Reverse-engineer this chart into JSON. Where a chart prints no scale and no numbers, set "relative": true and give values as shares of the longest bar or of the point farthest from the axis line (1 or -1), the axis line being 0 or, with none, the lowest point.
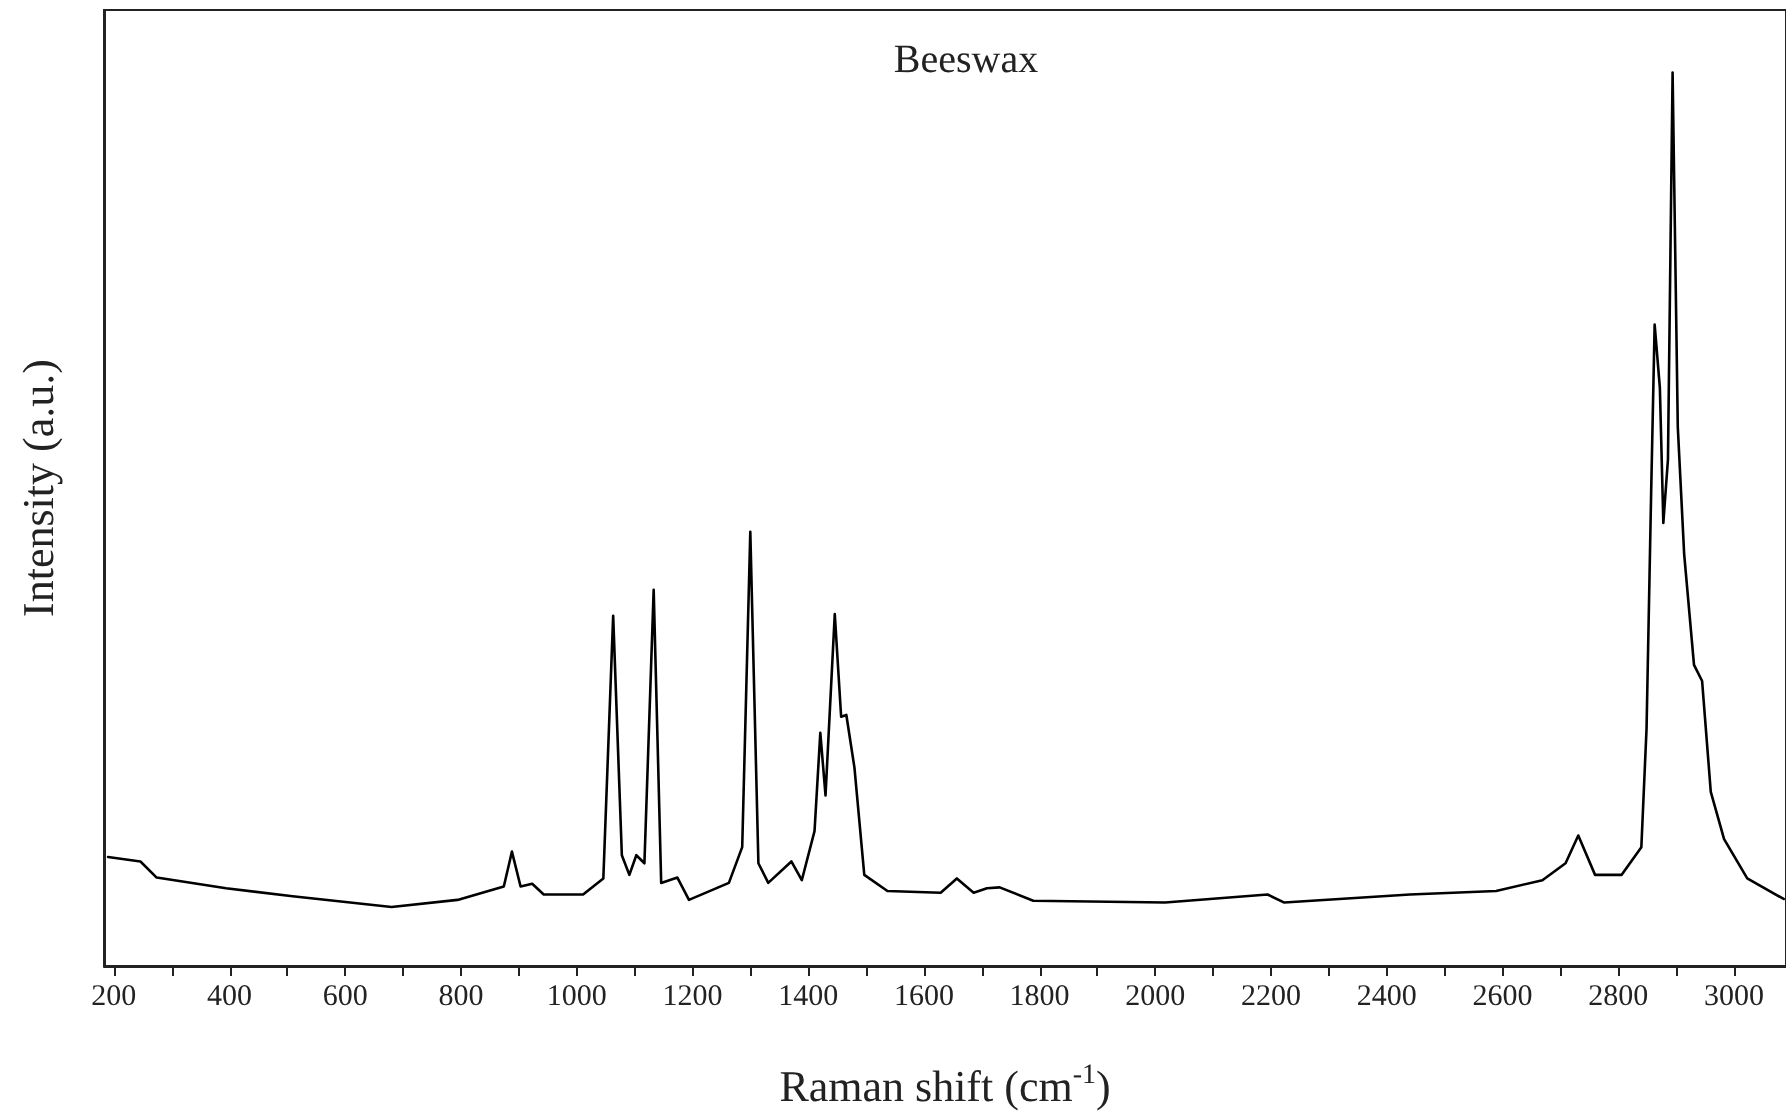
{
  "chart_data": {
    "type": "line",
    "title": "Beeswax",
    "xlabel": "Raman shift (cm$^{-1}$)",
    "ylabel": "Intensity (a.u.)",
    "relative": true,
    "xlim": [
      183,
      3090
    ],
    "xticks": [
      200,
      {
        "value": 300,
        "label": null
      },
      400,
      {
        "value": 500,
        "label": null
      },
      600,
      {
        "value": 700,
        "label": null
      },
      800,
      {
        "value": 900,
        "label": null
      },
      1000,
      {
        "value": 1100,
        "label": null
      },
      1200,
      {
        "value": 1300,
        "label": null
      },
      1400,
      {
        "value": 1500,
        "label": null
      },
      1600,
      {
        "value": 1700,
        "label": null
      },
      1800,
      {
        "value": 1900,
        "label": null
      },
      2000,
      {
        "value": 2100,
        "label": null
      },
      2200,
      {
        "value": 2300,
        "label": null
      },
      2400,
      {
        "value": 2500,
        "label": null
      },
      2600,
      {
        "value": 2700,
        "label": null
      },
      2800,
      {
        "value": 2900,
        "label": null
      },
      3000
    ],
    "grid": false,
    "marker": "none",
    "line_style": "solid",
    "x": [
      190,
      246,
      274,
      394,
      509,
      680,
      794,
      874,
      888,
      903,
      923,
      943,
      1011,
      1046,
      1063,
      1078,
      1091,
      1103,
      1117,
      1133,
      1146,
      1174,
      1194,
      1263,
      1286,
      1300,
      1314,
      1331,
      1371,
      1389,
      1411,
      1421,
      1430,
      1446,
      1457,
      1466,
      1480,
      1497,
      1537,
      1629,
      1657,
      1686,
      1709,
      1731,
      1789,
      2017,
      2194,
      2223,
      2440,
      2589,
      2669,
      2709,
      2731,
      2760,
      2806,
      2840,
      2849,
      2857,
      2863,
      2872,
      2878,
      2886,
      2894,
      2903,
      2914,
      2931,
      2945,
      2960,
      2983,
      3023,
      3086
    ],
    "series": [
      {
        "color": "#000000",
        "values": [
          0.122,
          0.117,
          0.099,
          0.087,
          0.078,
          0.066,
          0.074,
          0.089,
          0.128,
          0.089,
          0.092,
          0.08,
          0.08,
          0.098,
          0.392,
          0.124,
          0.102,
          0.124,
          0.115,
          0.421,
          0.093,
          0.099,
          0.074,
          0.093,
          0.133,
          0.486,
          0.115,
          0.093,
          0.117,
          0.096,
          0.151,
          0.261,
          0.191,
          0.394,
          0.279,
          0.281,
          0.222,
          0.102,
          0.084,
          0.082,
          0.098,
          0.082,
          0.087,
          0.088,
          0.073,
          0.071,
          0.08,
          0.071,
          0.08,
          0.084,
          0.096,
          0.115,
          0.146,
          0.102,
          0.102,
          0.133,
          0.266,
          0.532,
          0.718,
          0.647,
          0.496,
          0.567,
          1,
          0.603,
          0.461,
          0.337,
          0.319,
          0.195,
          0.142,
          0.098,
          0.075
        ]
      }
    ]
  }
}
